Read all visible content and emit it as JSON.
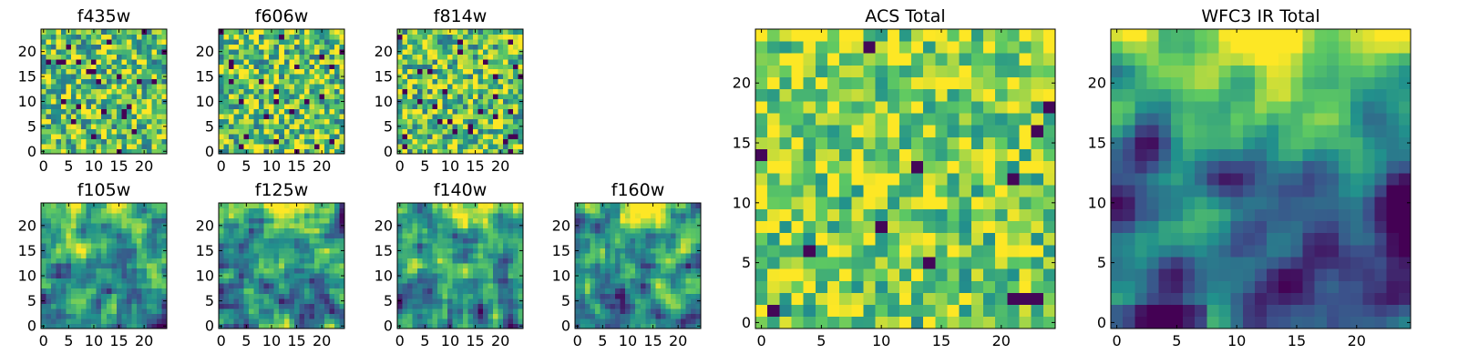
{
  "chart_data": [
    {
      "type": "heatmap",
      "title": "f435w",
      "seed": 11,
      "field": "acs_noise",
      "grid_size": 25,
      "xlim": [
        0,
        24
      ],
      "ylim": [
        0,
        24
      ],
      "xticks": [
        "0",
        "5",
        "10",
        "15",
        "20"
      ],
      "yticks": [
        "0",
        "5",
        "10",
        "15",
        "20"
      ]
    },
    {
      "type": "heatmap",
      "title": "f606w",
      "seed": 23,
      "field": "acs_noise",
      "grid_size": 25,
      "xlim": [
        0,
        24
      ],
      "ylim": [
        0,
        24
      ],
      "xticks": [
        "0",
        "5",
        "10",
        "15",
        "20"
      ],
      "yticks": [
        "0",
        "5",
        "10",
        "15",
        "20"
      ]
    },
    {
      "type": "heatmap",
      "title": "f814w",
      "seed": 37,
      "field": "acs_noise",
      "grid_size": 25,
      "xlim": [
        0,
        24
      ],
      "ylim": [
        0,
        24
      ],
      "xticks": [
        "0",
        "5",
        "10",
        "15",
        "20"
      ],
      "yticks": [
        "0",
        "5",
        "10",
        "15",
        "20"
      ]
    },
    {
      "type": "heatmap",
      "title": "f105w",
      "seed": 41,
      "field": "ir_gradient",
      "grid_size": 25,
      "xlim": [
        0,
        24
      ],
      "ylim": [
        0,
        24
      ],
      "xticks": [
        "0",
        "5",
        "10",
        "15",
        "20"
      ],
      "yticks": [
        "0",
        "5",
        "10",
        "15",
        "20"
      ]
    },
    {
      "type": "heatmap",
      "title": "f125w",
      "seed": 53,
      "field": "ir_gradient",
      "grid_size": 25,
      "xlim": [
        0,
        24
      ],
      "ylim": [
        0,
        24
      ],
      "xticks": [
        "0",
        "5",
        "10",
        "15",
        "20"
      ],
      "yticks": [
        "0",
        "5",
        "10",
        "15",
        "20"
      ]
    },
    {
      "type": "heatmap",
      "title": "f140w",
      "seed": 67,
      "field": "ir_gradient",
      "grid_size": 25,
      "xlim": [
        0,
        24
      ],
      "ylim": [
        0,
        24
      ],
      "xticks": [
        "0",
        "5",
        "10",
        "15",
        "20"
      ],
      "yticks": [
        "0",
        "5",
        "10",
        "15",
        "20"
      ]
    },
    {
      "type": "heatmap",
      "title": "f160w",
      "seed": 79,
      "field": "ir_gradient",
      "grid_size": 25,
      "xlim": [
        0,
        24
      ],
      "ylim": [
        0,
        24
      ],
      "xticks": [
        "0",
        "5",
        "10",
        "15",
        "20"
      ],
      "yticks": [
        "0",
        "5",
        "10",
        "15",
        "20"
      ]
    },
    {
      "type": "heatmap",
      "title": "ACS Total",
      "seed": 97,
      "field": "acs_total",
      "grid_size": 25,
      "xlim": [
        0,
        24
      ],
      "ylim": [
        0,
        24
      ],
      "xticks": [
        "0",
        "5",
        "10",
        "15",
        "20"
      ],
      "yticks": [
        "0",
        "5",
        "10",
        "15",
        "20"
      ]
    },
    {
      "type": "heatmap",
      "title": "WFC3 IR Total",
      "seed": 113,
      "field": "ir_total",
      "grid_size": 25,
      "xlim": [
        0,
        24
      ],
      "ylim": [
        0,
        24
      ],
      "xticks": [
        "0",
        "5",
        "10",
        "15",
        "20"
      ],
      "yticks": [
        "0",
        "5",
        "10",
        "15",
        "20"
      ]
    }
  ],
  "colormap": [
    "#440154",
    "#3b528b",
    "#21918c",
    "#5ec962",
    "#fde725"
  ]
}
